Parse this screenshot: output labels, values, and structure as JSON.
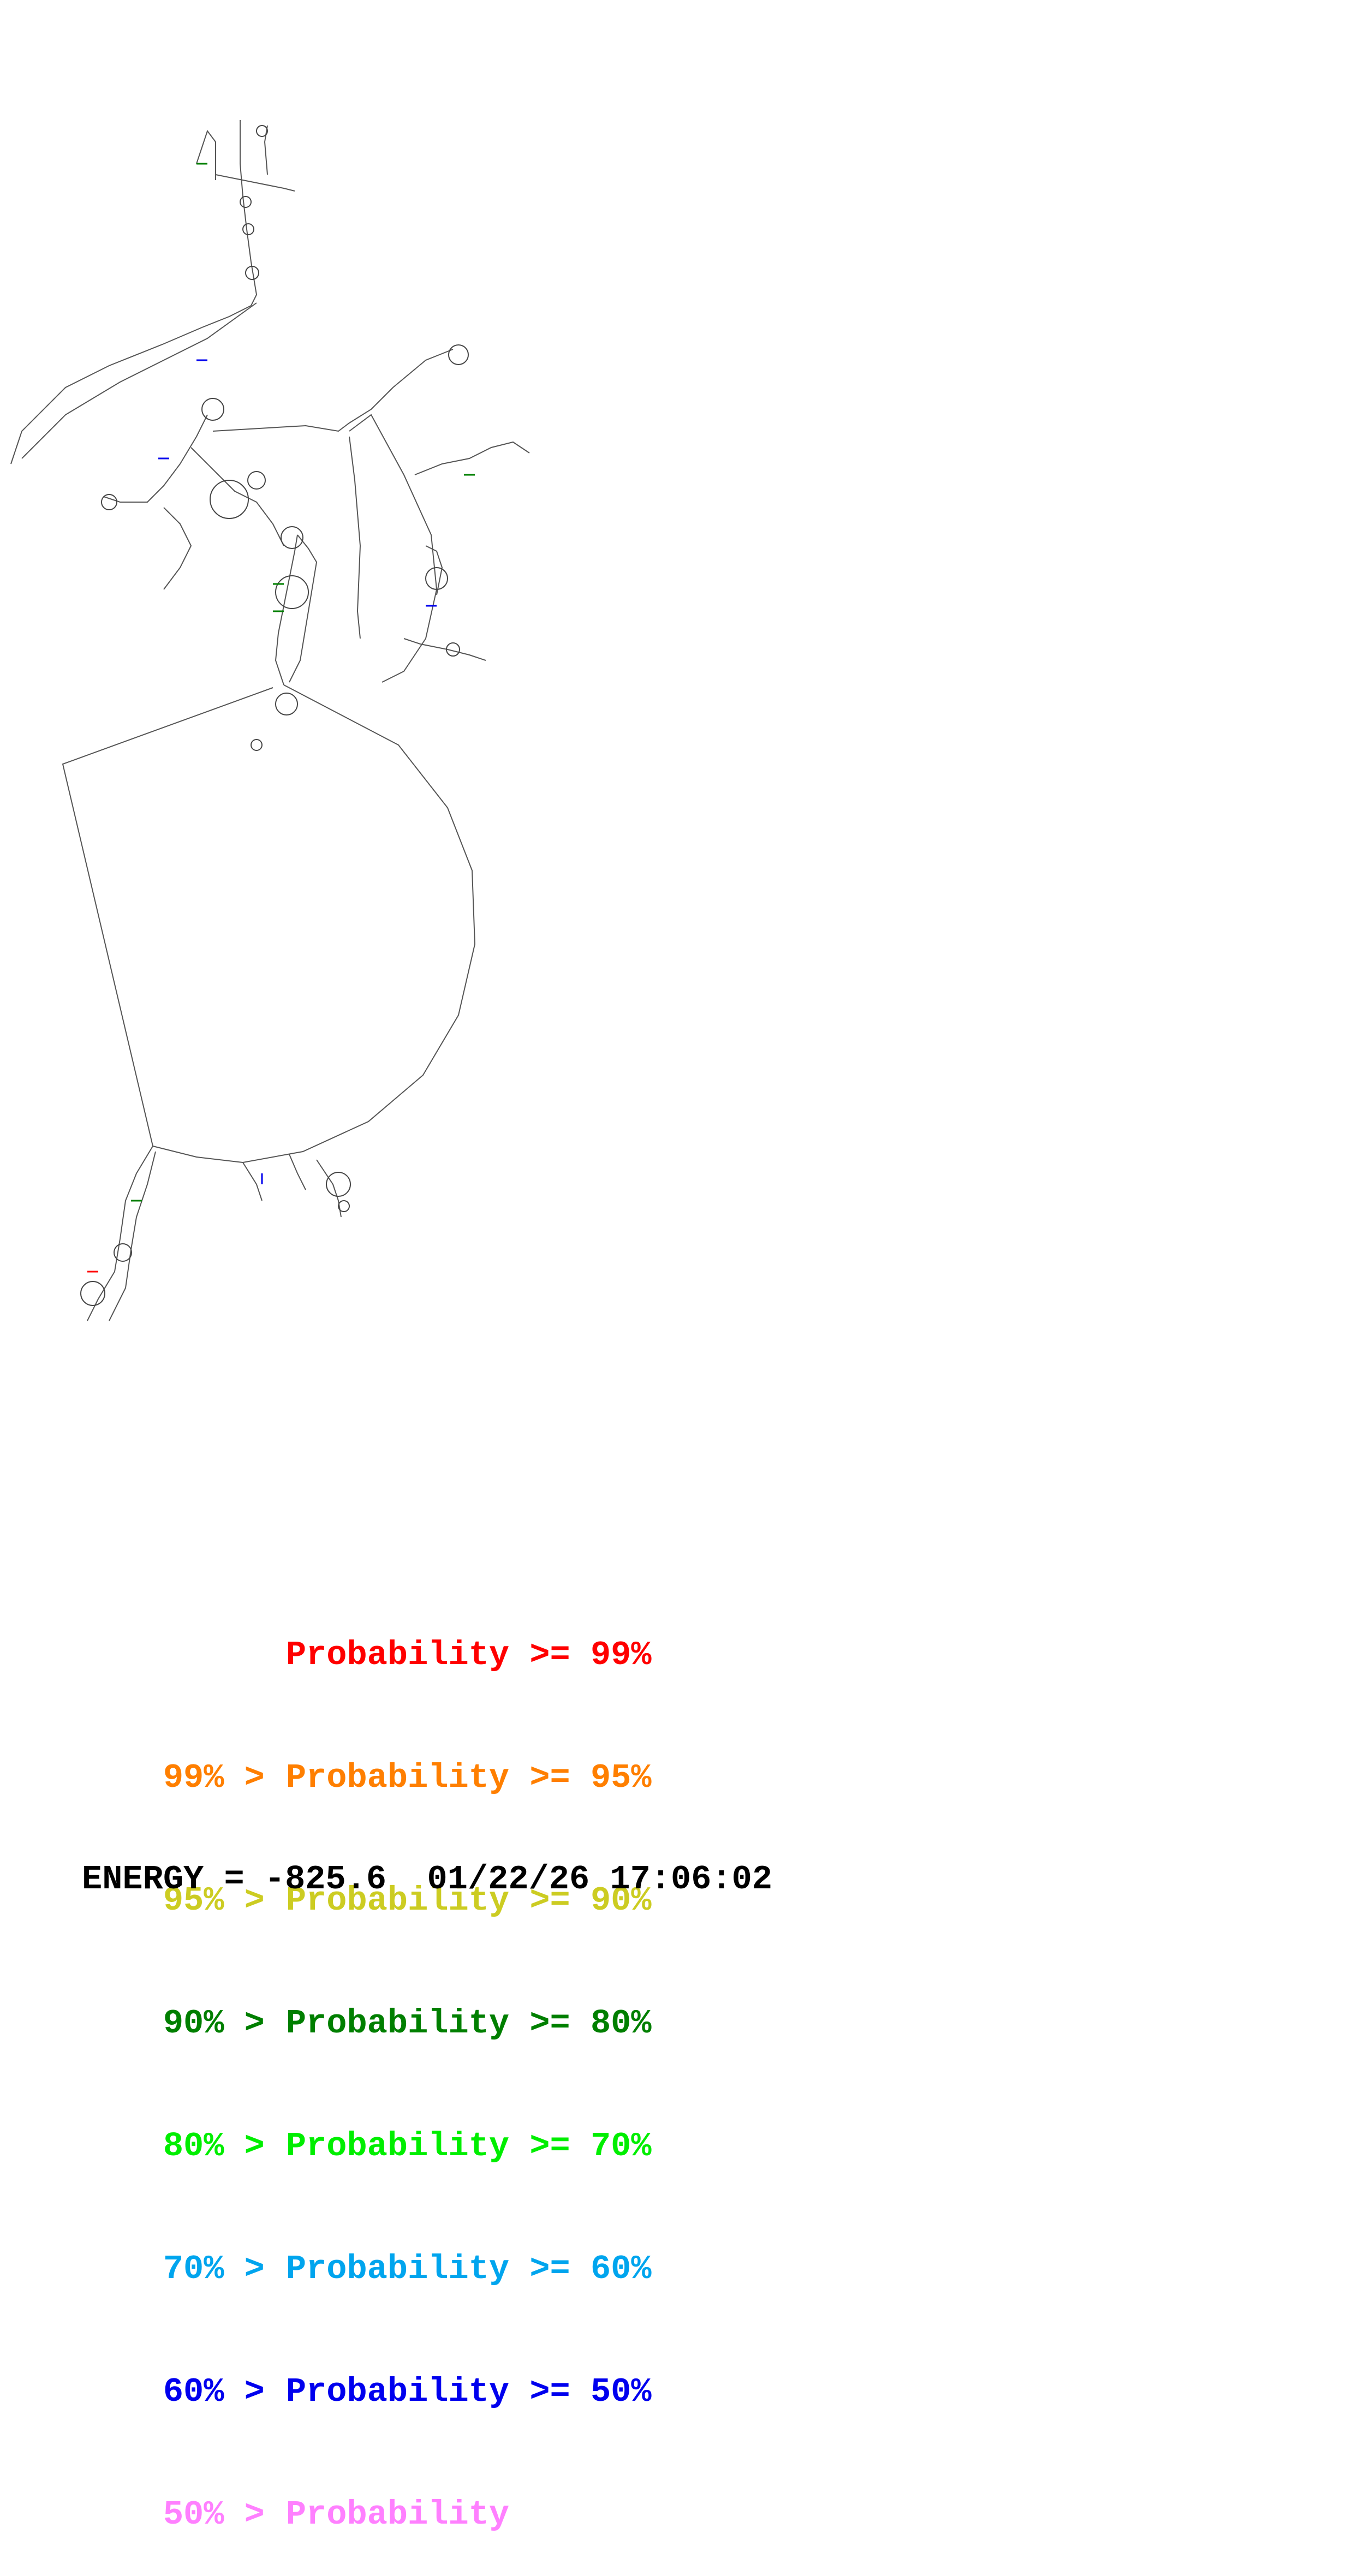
{
  "legend": {
    "rows": [
      {
        "prefix": "",
        "label": "Probability",
        "suffix": ">= 99%",
        "color": "#ff0000"
      },
      {
        "prefix": "99% >",
        "label": "Probability",
        "suffix": ">= 95%",
        "color": "#ff7f00"
      },
      {
        "prefix": "95% >",
        "label": "Probability",
        "suffix": ">= 90%",
        "color": "#cccc22"
      },
      {
        "prefix": "90% >",
        "label": "Probability",
        "suffix": ">= 80%",
        "color": "#007f00"
      },
      {
        "prefix": "80% >",
        "label": "Probability",
        "suffix": ">= 70%",
        "color": "#00ee00"
      },
      {
        "prefix": "70% >",
        "label": "Probability",
        "suffix": ">= 60%",
        "color": "#00a5ee"
      },
      {
        "prefix": "60% >",
        "label": "Probability",
        "suffix": ">= 50%",
        "color": "#0000ee"
      },
      {
        "prefix": "50% >",
        "label": "Probability",
        "suffix": "",
        "color": "#ff80ff"
      }
    ]
  },
  "footer": {
    "energy_label": "ENERGY",
    "energy_value": "-825.6",
    "date": "01/22/26",
    "time": "17:06:02"
  }
}
